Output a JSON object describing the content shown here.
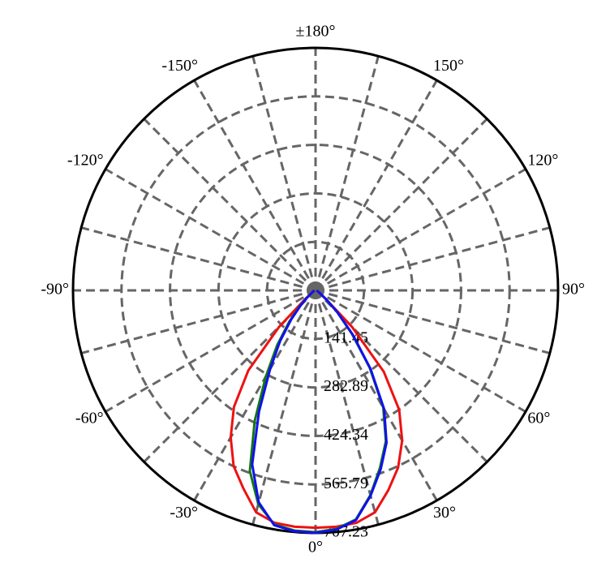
{
  "chart_data": {
    "type": "polar",
    "rlim": [
      0,
      707.23
    ],
    "rticks": [
      141.45,
      282.89,
      424.34,
      565.79,
      707.23
    ],
    "thetaticks": [
      {
        "value": 0,
        "label": "0°"
      },
      {
        "value": 30,
        "label": "30°"
      },
      {
        "value": 60,
        "label": "60°"
      },
      {
        "value": 90,
        "label": "90°"
      },
      {
        "value": 120,
        "label": "120°"
      },
      {
        "value": 150,
        "label": "150°"
      },
      {
        "value": 180,
        "label": "±180°"
      },
      {
        "value": -150,
        "label": "-150°"
      },
      {
        "value": -120,
        "label": "-120°"
      },
      {
        "value": -90,
        "label": "-90°"
      },
      {
        "value": -60,
        "label": "-60°"
      },
      {
        "value": -30,
        "label": "-30°"
      }
    ],
    "theta_grid_step": 15,
    "grid": true,
    "theta": [
      -90,
      -60,
      -50,
      -45,
      -40,
      -35,
      -30,
      -25,
      -20,
      -15,
      -10,
      -5,
      0,
      5,
      10,
      15,
      20,
      25,
      30,
      35,
      40,
      45,
      50,
      60,
      90
    ],
    "series": [
      {
        "color": "#ee1111",
        "r": [
          5,
          10,
          40,
          150,
          305,
          415,
          495,
          565,
          615,
          670,
          688,
          692,
          692,
          692,
          688,
          670,
          620,
          570,
          505,
          425,
          310,
          150,
          40,
          10,
          5
        ]
      },
      {
        "color": "#117711",
        "r": [
          3,
          10,
          32,
          65,
          120,
          195,
          290,
          420,
          560,
          645,
          693,
          703,
          705,
          698,
          678,
          618,
          550,
          485,
          395,
          275,
          165,
          88,
          38,
          12,
          3
        ]
      },
      {
        "color": "#1111ee",
        "r": [
          3,
          10,
          30,
          60,
          110,
          180,
          265,
          390,
          540,
          640,
          695,
          705,
          707,
          700,
          680,
          620,
          555,
          490,
          400,
          280,
          170,
          90,
          40,
          12,
          3
        ]
      }
    ]
  }
}
